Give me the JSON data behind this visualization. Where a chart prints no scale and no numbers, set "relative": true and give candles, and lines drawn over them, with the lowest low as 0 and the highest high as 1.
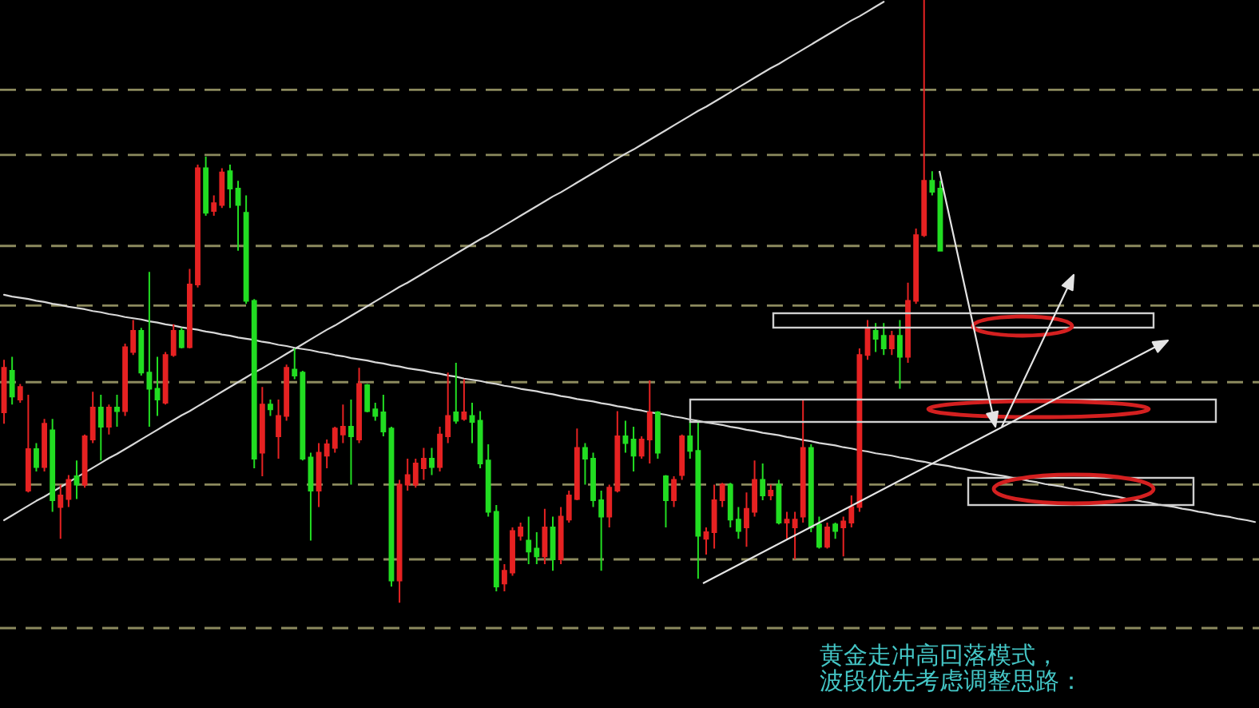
{
  "chart_data": {
    "type": "candlestick",
    "relative": true,
    "categories": [
      null,
      null,
      null,
      null,
      null,
      null,
      null,
      null,
      null,
      null,
      null,
      null,
      null,
      null,
      null,
      null,
      null,
      null,
      null,
      null,
      null,
      null,
      null,
      null,
      null,
      null,
      null,
      null,
      null,
      null,
      null,
      null,
      null,
      null,
      null,
      null,
      null,
      null,
      null,
      null,
      null,
      null,
      null,
      null,
      null,
      null,
      null,
      null,
      null,
      null,
      null,
      null,
      null,
      null,
      null,
      null,
      null,
      null,
      null,
      null,
      null,
      null,
      null,
      null,
      null,
      null,
      null,
      null,
      null,
      null,
      null,
      null,
      null,
      null,
      null,
      null,
      null,
      null,
      null,
      null,
      null,
      null,
      null,
      null,
      null,
      null,
      null,
      null,
      null,
      null,
      null,
      null,
      null,
      null,
      null,
      null,
      null,
      null,
      null,
      null,
      null,
      null,
      null,
      null,
      null,
      null,
      null,
      null,
      null,
      null,
      null,
      null,
      null,
      null,
      null,
      null,
      null,
      null,
      null,
      null,
      null,
      null,
      null,
      null,
      null,
      null,
      null,
      null,
      null,
      null,
      null,
      null,
      null,
      null,
      null,
      null,
      null,
      null,
      null,
      null,
      null,
      null,
      null,
      null,
      null,
      null,
      null,
      null,
      null,
      null,
      null,
      null,
      null,
      null,
      null,
      null
    ],
    "ohlc": [
      [
        0.316,
        0.403,
        0.297,
        0.39
      ],
      [
        0.385,
        0.408,
        0.329,
        0.342
      ],
      [
        0.337,
        0.363,
        0.332,
        0.358
      ],
      [
        0.186,
        0.345,
        0.183,
        0.255
      ],
      [
        0.255,
        0.265,
        0.218,
        0.225
      ],
      [
        0.225,
        0.305,
        0.218,
        0.297
      ],
      [
        0.286,
        0.305,
        0.151,
        0.17
      ],
      [
        0.159,
        0.196,
        0.106,
        0.178
      ],
      [
        0.172,
        0.212,
        0.159,
        0.204
      ],
      [
        0.21,
        0.236,
        0.172,
        0.196
      ],
      [
        0.196,
        0.279,
        0.191,
        0.276
      ],
      [
        0.271,
        0.35,
        0.265,
        0.324
      ],
      [
        0.324,
        0.345,
        0.236,
        0.292
      ],
      [
        0.292,
        0.329,
        0.279,
        0.324
      ],
      [
        0.324,
        0.345,
        0.292,
        0.318
      ],
      [
        0.318,
        0.43,
        0.31,
        0.424
      ],
      [
        0.416,
        0.469,
        0.411,
        0.451
      ],
      [
        0.451,
        0.456,
        0.377,
        0.382
      ],
      [
        0.382,
        0.549,
        0.292,
        0.355
      ],
      [
        0.355,
        0.408,
        0.31,
        0.337
      ],
      [
        0.332,
        0.416,
        0.329,
        0.411
      ],
      [
        0.411,
        0.462,
        0.408,
        0.451
      ],
      [
        0.451,
        0.456,
        0.422,
        0.424
      ],
      [
        0.424,
        0.554,
        0.422,
        0.528
      ],
      [
        0.528,
        0.727,
        0.523,
        0.721
      ],
      [
        0.721,
        0.74,
        0.642,
        0.647
      ],
      [
        0.65,
        0.676,
        0.642,
        0.663
      ],
      [
        0.66,
        0.721,
        0.655,
        0.714
      ],
      [
        0.716,
        0.727,
        0.655,
        0.687
      ],
      [
        0.687,
        0.7,
        0.584,
        0.66
      ],
      [
        0.647,
        0.676,
        0.496,
        0.501
      ],
      [
        0.501,
        0.504,
        0.223,
        0.239
      ],
      [
        0.249,
        0.358,
        0.21,
        0.329
      ],
      [
        0.329,
        0.337,
        0.31,
        0.321
      ],
      [
        0.276,
        0.337,
        0.239,
        0.31
      ],
      [
        0.31,
        0.395,
        0.302,
        0.39
      ],
      [
        0.387,
        0.422,
        0.371,
        0.377
      ],
      [
        0.382,
        0.385,
        0.236,
        0.239
      ],
      [
        0.241,
        0.249,
        0.103,
        0.186
      ],
      [
        0.186,
        0.265,
        0.159,
        0.249
      ],
      [
        0.244,
        0.271,
        0.223,
        0.263
      ],
      [
        0.257,
        0.292,
        0.249,
        0.289
      ],
      [
        0.279,
        0.329,
        0.265,
        0.292
      ],
      [
        0.292,
        0.337,
        0.196,
        0.276
      ],
      [
        0.271,
        0.39,
        0.265,
        0.363
      ],
      [
        0.361,
        0.363,
        0.316,
        0.318
      ],
      [
        0.321,
        0.332,
        0.302,
        0.31
      ],
      [
        0.316,
        0.345,
        0.276,
        0.284
      ],
      [
        0.289,
        0.292,
        0.027,
        0.037
      ],
      [
        0.037,
        0.204,
        0,
        0.196
      ],
      [
        0.196,
        0.239,
        0.186,
        0.212
      ],
      [
        0.196,
        0.239,
        0.191,
        0.231
      ],
      [
        0.223,
        0.257,
        0.204,
        0.239
      ],
      [
        0.239,
        0.257,
        0.212,
        0.225
      ],
      [
        0.225,
        0.292,
        0.218,
        0.279
      ],
      [
        0.276,
        0.382,
        0.265,
        0.31
      ],
      [
        0.316,
        0.398,
        0.297,
        0.302
      ],
      [
        0.305,
        0.371,
        0.302,
        0.316
      ],
      [
        0.31,
        0.332,
        0.265,
        0.3
      ],
      [
        0.302,
        0.318,
        0.223,
        0.231
      ],
      [
        0.236,
        0.263,
        0.143,
        0.151
      ],
      [
        0.151,
        0.162,
        0.019,
        0.027
      ],
      [
        0.032,
        0.064,
        0.019,
        0.053
      ],
      [
        0.05,
        0.125,
        0.045,
        0.119
      ],
      [
        0.111,
        0.133,
        0.103,
        0.125
      ],
      [
        0.103,
        0.143,
        0.064,
        0.085
      ],
      [
        0.09,
        0.117,
        0.064,
        0.077
      ],
      [
        0.077,
        0.156,
        0.064,
        0.125
      ],
      [
        0.125,
        0.143,
        0.053,
        0.072
      ],
      [
        0.072,
        0.159,
        0.064,
        0.143
      ],
      [
        0.138,
        0.186,
        0.133,
        0.178
      ],
      [
        0.172,
        0.289,
        0.17,
        0.257
      ],
      [
        0.257,
        0.265,
        0.196,
        0.239
      ],
      [
        0.239,
        0.249,
        0.159,
        0.17
      ],
      [
        0.17,
        0.186,
        0.053,
        0.143
      ],
      [
        0.143,
        0.196,
        0.125,
        0.191
      ],
      [
        0.186,
        0.318,
        0.183,
        0.276
      ],
      [
        0.276,
        0.302,
        0.249,
        0.265
      ],
      [
        0.271,
        0.292,
        0.218,
        0.244
      ],
      [
        0.244,
        0.276,
        0.239,
        0.271
      ],
      [
        0.271,
        0.369,
        0.231,
        0.316
      ],
      [
        0.316,
        0.318,
        0.239,
        0.249
      ],
      [
        0.21,
        0.212,
        0.125,
        0.17
      ],
      [
        0.17,
        0.21,
        0.159,
        0.204
      ],
      [
        0.212,
        0.279,
        0.204,
        0.276
      ],
      [
        0.276,
        0.302,
        0.239,
        0.252
      ],
      [
        0.252,
        0.302,
        0.04,
        0.111
      ],
      [
        0.106,
        0.125,
        0.08,
        0.117
      ],
      [
        0.117,
        0.196,
        0.09,
        0.17
      ],
      [
        0.17,
        0.199,
        0.159,
        0.196
      ],
      [
        0.196,
        0.199,
        0.125,
        0.138
      ],
      [
        0.138,
        0.159,
        0.106,
        0.119
      ],
      [
        0.125,
        0.183,
        0.093,
        0.156
      ],
      [
        0.151,
        0.236,
        0.143,
        0.204
      ],
      [
        0.204,
        0.231,
        0.17,
        0.178
      ],
      [
        0.178,
        0.196,
        0.17,
        0.186
      ],
      [
        0.196,
        0.204,
        0.13,
        0.133
      ],
      [
        0.133,
        0.151,
        0.106,
        0.138
      ],
      [
        0.125,
        0.151,
        0.072,
        0.138
      ],
      [
        0.143,
        0.337,
        0.133,
        0.257
      ],
      [
        0.257,
        0.263,
        0.117,
        0.125
      ],
      [
        0.13,
        0.143,
        0.09,
        0.093
      ],
      [
        0.093,
        0.133,
        0.09,
        0.125
      ],
      [
        0.13,
        0.133,
        0.106,
        0.119
      ],
      [
        0.125,
        0.143,
        0.077,
        0.135
      ],
      [
        0.133,
        0.178,
        0.125,
        0.159
      ],
      [
        0.159,
        0.422,
        0.151,
        0.411
      ],
      [
        0.411,
        0.469,
        0.403,
        0.456
      ],
      [
        0.451,
        0.464,
        0.416,
        0.438
      ],
      [
        0.443,
        0.464,
        0.411,
        0.422
      ],
      [
        0.422,
        0.451,
        0.411,
        0.443
      ],
      [
        0.443,
        0.469,
        0.355,
        0.408
      ],
      [
        0.408,
        0.531,
        0.398,
        0.501
      ],
      [
        0.501,
        0.621,
        0.496,
        0.61
      ],
      [
        0.61,
        1,
        0.607,
        0.7
      ],
      [
        0.7,
        0.716,
        0.676,
        0.682
      ],
      [
        0.687,
        0.7,
        0.584,
        0.584
      ],
      null,
      null,
      null,
      null,
      null,
      null,
      null,
      null,
      null,
      null,
      null,
      null,
      null,
      null,
      null,
      null,
      null,
      null,
      null,
      null,
      null,
      null,
      null,
      null,
      null,
      null,
      null,
      null,
      null,
      null,
      null,
      null,
      null,
      null,
      null,
      null,
      null,
      null,
      null
    ],
    "colors": [
      "#e62222",
      "#22dd22",
      "#e62222",
      "#e62222",
      "#22dd22",
      "#e62222",
      "#22dd22",
      "#e62222",
      "#e62222",
      "#22dd22",
      "#e62222",
      "#e62222",
      "#22dd22",
      "#e62222",
      "#22dd22",
      "#e62222",
      "#e62222",
      "#22dd22",
      "#22dd22",
      "#22dd22",
      "#e62222",
      "#e62222",
      "#22dd22",
      "#e62222",
      "#e62222",
      "#22dd22",
      "#e62222",
      "#e62222",
      "#22dd22",
      "#22dd22",
      "#22dd22",
      "#22dd22",
      "#e62222",
      "#22dd22",
      "#e62222",
      "#e62222",
      "#22dd22",
      "#22dd22",
      "#22dd22",
      "#e62222",
      "#e62222",
      "#e62222",
      "#e62222",
      "#22dd22",
      "#e62222",
      "#22dd22",
      "#22dd22",
      "#22dd22",
      "#22dd22",
      "#e62222",
      "#e62222",
      "#e62222",
      "#e62222",
      "#22dd22",
      "#e62222",
      "#e62222",
      "#22dd22",
      "#e62222",
      "#22dd22",
      "#22dd22",
      "#22dd22",
      "#22dd22",
      "#e62222",
      "#e62222",
      "#e62222",
      "#22dd22",
      "#22dd22",
      "#e62222",
      "#22dd22",
      "#e62222",
      "#e62222",
      "#e62222",
      "#22dd22",
      "#22dd22",
      "#22dd22",
      "#e62222",
      "#e62222",
      "#22dd22",
      "#22dd22",
      "#e62222",
      "#e62222",
      "#22dd22",
      "#22dd22",
      "#e62222",
      "#e62222",
      "#22dd22",
      "#22dd22",
      "#e62222",
      "#e62222",
      "#e62222",
      "#22dd22",
      "#22dd22",
      "#e62222",
      "#e62222",
      "#22dd22",
      "#e62222",
      "#22dd22",
      "#e62222",
      "#e62222",
      "#e62222",
      "#22dd22",
      "#22dd22",
      "#e62222",
      "#22dd22",
      "#e62222",
      "#e62222",
      "#e62222",
      "#e62222",
      "#22dd22",
      "#22dd22",
      "#e62222",
      "#22dd22",
      "#e62222",
      "#e62222",
      "#e62222",
      "#22dd22",
      "#22dd22",
      null,
      null,
      null,
      null,
      null,
      null,
      null,
      null,
      null,
      null,
      null,
      null,
      null,
      null,
      null,
      null,
      null,
      null,
      null,
      null,
      null,
      null,
      null,
      null,
      null,
      null,
      null,
      null,
      null,
      null,
      null,
      null,
      null,
      null,
      null,
      null,
      null,
      null,
      null
    ],
    "series": [
      {
        "type": "line",
        "color": "#d8d8d8",
        "values": [
          0.137,
          0.145,
          0.153,
          0.161,
          0.169,
          0.176,
          0.184,
          0.192,
          0.2,
          0.208,
          0.216,
          0.224,
          0.232,
          0.24,
          0.247,
          0.255,
          0.263,
          0.271,
          0.279,
          0.287,
          0.295,
          0.303,
          0.311,
          0.318,
          0.326,
          0.334,
          0.342,
          0.35,
          0.358,
          0.366,
          0.374,
          0.382,
          0.389,
          0.397,
          0.405,
          0.413,
          0.421,
          0.429,
          0.437,
          0.445,
          0.453,
          0.46,
          0.468,
          0.476,
          0.484,
          0.492,
          0.5,
          0.508,
          0.516,
          0.524,
          0.531,
          0.539,
          0.547,
          0.555,
          0.563,
          0.571,
          0.579,
          0.587,
          0.595,
          0.603,
          0.61,
          0.618,
          0.626,
          0.634,
          0.642,
          0.65,
          0.658,
          0.666,
          0.674,
          0.681,
          0.689,
          0.697,
          0.705,
          0.713,
          0.721,
          0.729,
          0.737,
          0.745,
          0.752,
          0.76,
          0.768,
          0.776,
          0.784,
          0.792,
          0.8,
          0.808,
          0.816,
          0.823,
          0.831,
          0.839,
          0.847,
          0.855,
          0.863,
          0.871,
          0.879,
          0.887,
          0.894,
          0.902,
          0.91,
          0.918,
          0.926,
          0.934,
          0.942,
          0.95,
          0.958,
          0.966,
          0.973,
          0.981,
          0.989,
          0.997,
          null,
          null,
          null,
          null,
          null,
          null,
          null,
          null,
          null,
          null,
          null,
          null,
          null,
          null,
          null,
          null,
          null,
          null,
          null,
          null,
          null,
          null,
          null,
          null,
          null,
          null,
          null,
          null,
          null,
          null,
          null,
          null,
          null,
          null,
          null,
          null,
          null,
          null,
          null,
          null,
          null,
          null,
          null,
          null,
          null,
          null
        ]
      },
      {
        "type": "line",
        "color": "#d8d8d8",
        "values": [
          0.511,
          0.508,
          0.506,
          0.504,
          0.501,
          0.499,
          0.496,
          0.494,
          0.491,
          0.489,
          0.487,
          0.484,
          0.482,
          0.479,
          0.477,
          0.474,
          0.472,
          0.47,
          0.467,
          0.465,
          0.462,
          0.46,
          0.457,
          0.455,
          0.453,
          0.45,
          0.448,
          0.445,
          0.443,
          0.44,
          0.438,
          0.436,
          0.433,
          0.431,
          0.428,
          0.426,
          0.423,
          0.421,
          0.419,
          0.416,
          0.414,
          0.411,
          0.409,
          0.406,
          0.404,
          0.402,
          0.399,
          0.397,
          0.394,
          0.392,
          0.389,
          0.387,
          0.385,
          0.382,
          0.38,
          0.377,
          0.375,
          0.372,
          0.37,
          0.368,
          0.365,
          0.363,
          0.36,
          0.358,
          0.355,
          0.353,
          0.351,
          0.348,
          0.346,
          0.343,
          0.341,
          0.338,
          0.336,
          0.334,
          0.331,
          0.329,
          0.326,
          0.324,
          0.321,
          0.319,
          0.316,
          0.314,
          0.312,
          0.309,
          0.307,
          0.304,
          0.302,
          0.299,
          0.297,
          0.295,
          0.292,
          0.29,
          0.287,
          0.285,
          0.282,
          0.28,
          0.278,
          0.275,
          0.273,
          0.27,
          0.268,
          0.265,
          0.263,
          0.261,
          0.258,
          0.256,
          0.253,
          0.251,
          0.248,
          0.246,
          0.244,
          0.241,
          0.239,
          0.236,
          0.234,
          0.231,
          0.229,
          0.227,
          0.224,
          0.222,
          0.219,
          0.217,
          0.214,
          0.212,
          0.21,
          0.207,
          0.205,
          0.202,
          0.2,
          0.197,
          0.195,
          0.193,
          0.19,
          0.188,
          0.185,
          0.183,
          0.18,
          0.178,
          0.176,
          0.173,
          0.171,
          0.168,
          0.166,
          0.163,
          0.161,
          0.159,
          0.156,
          0.154,
          0.151,
          0.149,
          0.146,
          0.144,
          0.142,
          0.139,
          0.137,
          0.134
        ]
      }
    ],
    "ref_lines": [
      {
        "axis": "y",
        "value": 0.851,
        "line_style": "dashed",
        "color": "#8c8a5e"
      },
      {
        "axis": "y",
        "value": 0.743,
        "line_style": "dashed",
        "color": "#8c8a5e"
      },
      {
        "axis": "y",
        "value": 0.592,
        "line_style": "dashed",
        "color": "#8c8a5e"
      },
      {
        "axis": "y",
        "value": 0.493,
        "line_style": "dashed",
        "color": "#8c8a5e"
      },
      {
        "axis": "y",
        "value": 0.366,
        "line_style": "dashed",
        "color": "#8c8a5e"
      },
      {
        "axis": "y",
        "value": 0.196,
        "line_style": "dashed",
        "color": "#8c8a5e"
      },
      {
        "axis": "y",
        "value": 0.072,
        "line_style": "dashed",
        "color": "#8c8a5e"
      },
      {
        "axis": "y",
        "value": -0.042,
        "line_style": "dashed",
        "color": "#8c8a5e"
      }
    ],
    "annotations": [
      "黄金走冲高回落模式，",
      "波段优先考虑调整思路："
    ]
  }
}
